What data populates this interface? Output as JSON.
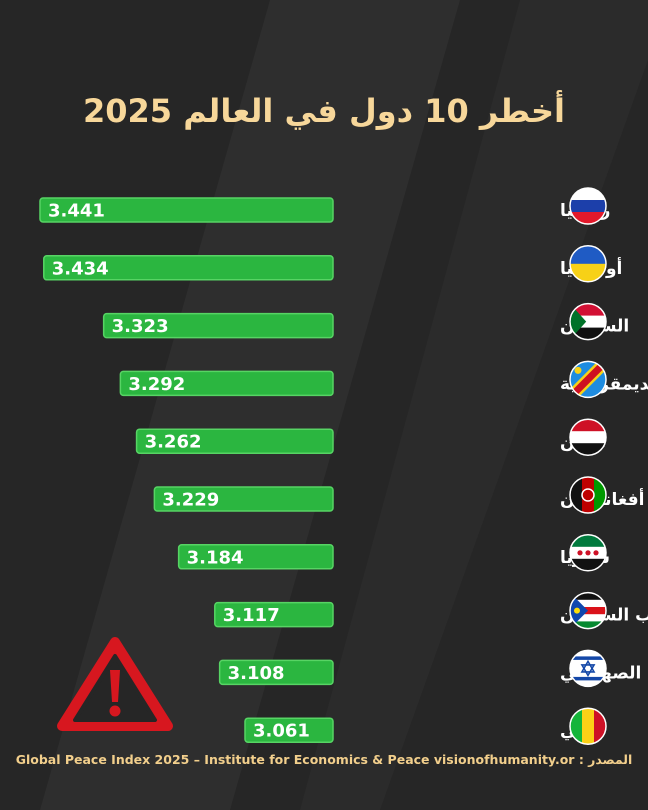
{
  "title": "أخطر 10 دول في العالم 2025",
  "source": {
    "label": "المصدر :",
    "text": "Global Peace Index 2025 – Institute for Economics & Peace visionofhumanity.or"
  },
  "colors": {
    "bar": "#2bb640",
    "bar_stroke": "#57d464",
    "background": "#262626",
    "title": "#f7d79a",
    "warning": "#d7171f"
  },
  "chart_data": {
    "type": "bar",
    "orientation": "horizontal",
    "categories": [
      "روسيا",
      "أوكرانيا",
      "السودان",
      "جمهورية الكونغو الديمقراطية",
      "اليمن",
      "أفغانستان",
      "سوريا",
      "جنوب السودان",
      "الكيان الصهيوني",
      "مالي"
    ],
    "values": [
      3.441,
      3.434,
      3.323,
      3.292,
      3.262,
      3.229,
      3.184,
      3.117,
      3.108,
      3.061
    ],
    "flags": [
      "flag-russia-icon",
      "flag-ukraine-icon",
      "flag-sudan-icon",
      "flag-dr-congo-icon",
      "flag-yemen-icon",
      "flag-afghanistan-icon",
      "flag-syria-icon",
      "flag-south-sudan-icon",
      "flag-star-of-david-icon",
      "flag-mali-icon"
    ]
  }
}
